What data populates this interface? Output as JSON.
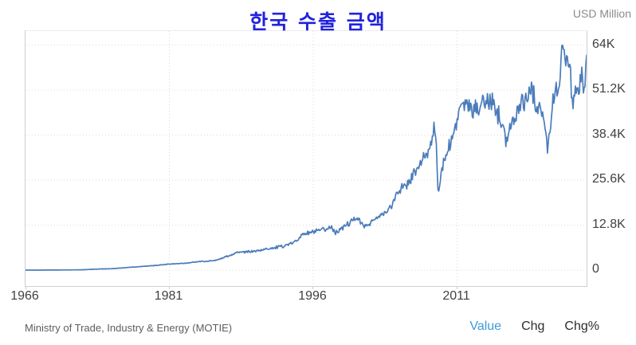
{
  "chart_data": {
    "type": "line",
    "title": "한국 수출 금액",
    "ylabel": "USD Million",
    "xlabel": "",
    "x_ticks": [
      1966,
      1981,
      1996,
      2011
    ],
    "y_ticks": [
      {
        "value": 0,
        "label": "0"
      },
      {
        "value": 12800,
        "label": "12.8K"
      },
      {
        "value": 25600,
        "label": "25.6K"
      },
      {
        "value": 38400,
        "label": "38.4K"
      },
      {
        "value": 51200,
        "label": "51.2K"
      },
      {
        "value": 64000,
        "label": "64K"
      }
    ],
    "xlim": [
      1966,
      2024.5
    ],
    "ylim": [
      -4500,
      68000
    ],
    "grid": true,
    "legend": false,
    "sampling": "monthly",
    "volatility": 0.05,
    "line_color": "#4b7cba",
    "series": [
      {
        "name": "한국 수출 금액",
        "points": [
          [
            1966,
            20
          ],
          [
            1967,
            30
          ],
          [
            1968,
            42
          ],
          [
            1969,
            55
          ],
          [
            1970,
            72
          ],
          [
            1971,
            95
          ],
          [
            1972,
            135
          ],
          [
            1973,
            270
          ],
          [
            1974,
            370
          ],
          [
            1975,
            430
          ],
          [
            1976,
            640
          ],
          [
            1977,
            840
          ],
          [
            1978,
            1060
          ],
          [
            1979,
            1260
          ],
          [
            1980,
            1470
          ],
          [
            1981,
            1780
          ],
          [
            1982,
            1830
          ],
          [
            1983,
            2050
          ],
          [
            1984,
            2450
          ],
          [
            1985,
            2540
          ],
          [
            1986,
            2900
          ],
          [
            1987,
            3930
          ],
          [
            1988,
            5070
          ],
          [
            1989,
            5200
          ],
          [
            1990,
            5430
          ],
          [
            1991,
            6000
          ],
          [
            1992,
            6390
          ],
          [
            1993,
            6870
          ],
          [
            1994,
            8010
          ],
          [
            1995,
            10430
          ],
          [
            1996,
            10830
          ],
          [
            1997,
            11360
          ],
          [
            1997.9,
            12300
          ],
          [
            1998.3,
            10700
          ],
          [
            1999,
            12000
          ],
          [
            2000.6,
            14900
          ],
          [
            2001.4,
            12200
          ],
          [
            2002,
            13600
          ],
          [
            2003,
            15500
          ],
          [
            2004.1,
            17800
          ],
          [
            2004.9,
            23000
          ],
          [
            2005.5,
            23800
          ],
          [
            2006.5,
            27300
          ],
          [
            2007.5,
            31500
          ],
          [
            2008.1,
            34500
          ],
          [
            2008.55,
            41000
          ],
          [
            2008.8,
            36500
          ],
          [
            2009.05,
            21500
          ],
          [
            2009.4,
            28500
          ],
          [
            2009.8,
            32500
          ],
          [
            2010.3,
            35500
          ],
          [
            2010.95,
            41500
          ],
          [
            2011.3,
            47000
          ],
          [
            2011.9,
            47500
          ],
          [
            2012.4,
            44800
          ],
          [
            2013,
            45700
          ],
          [
            2013.9,
            48300
          ],
          [
            2014.7,
            47500
          ],
          [
            2015.3,
            44000
          ],
          [
            2015.9,
            42500
          ],
          [
            2016.1,
            37500
          ],
          [
            2016.8,
            41500
          ],
          [
            2017.5,
            47800
          ],
          [
            2018.1,
            48500
          ],
          [
            2018.8,
            52000
          ],
          [
            2019.3,
            46800
          ],
          [
            2019.9,
            44500
          ],
          [
            2020.1,
            41500
          ],
          [
            2020.4,
            35000
          ],
          [
            2020.8,
            42500
          ],
          [
            2021,
            48500
          ],
          [
            2021.6,
            53500
          ],
          [
            2021.95,
            60500
          ],
          [
            2022.2,
            63200
          ],
          [
            2022.4,
            59800
          ],
          [
            2022.55,
            61500
          ],
          [
            2022.85,
            54500
          ],
          [
            2023.05,
            46400
          ],
          [
            2023.3,
            52300
          ],
          [
            2023.6,
            50800
          ],
          [
            2023.95,
            54800
          ],
          [
            2024.15,
            52500
          ],
          [
            2024.5,
            57500
          ]
        ]
      }
    ]
  },
  "colors": {
    "title": "#2222dd",
    "active_link": "#3f9ada",
    "inactive_link": "#2d2d2d",
    "axis_text": "#414141",
    "grid": "#dadada",
    "border": "#cfcfcf"
  },
  "footer": {
    "source": "Ministry of Trade, Industry & Energy (MOTIE)",
    "links": [
      {
        "label": "Value",
        "active": true
      },
      {
        "label": "Chg",
        "active": false
      },
      {
        "label": "Chg%",
        "active": false
      }
    ]
  }
}
